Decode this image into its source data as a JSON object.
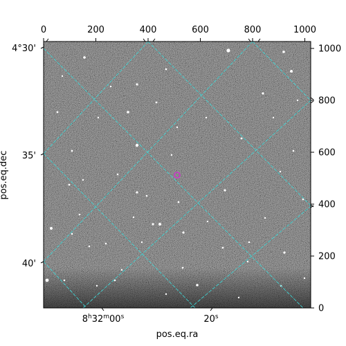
{
  "figure": {
    "xlabel": "pos.eq.ra",
    "ylabel": "pos.eq.dec",
    "top_pixel_ticks": [
      "0",
      "200",
      "400",
      "600",
      "800",
      "1000"
    ],
    "right_pixel_ticks": [
      "0",
      "200",
      "400",
      "600",
      "800",
      "1000"
    ],
    "ra_ticks": [
      {
        "main": "8",
        "h": "h",
        "m_val": "32",
        "m": "m",
        "s_val": "00",
        "s": "s"
      },
      {
        "main": "",
        "h": "",
        "m_val": "",
        "m": "",
        "s_val": "20",
        "s": "s"
      }
    ],
    "dec_ticks": [
      "4°30'",
      "35'",
      "40'"
    ],
    "grid_color": "#3fd3d3",
    "marker_color": "#cc33cc",
    "image": "grayscale star field"
  }
}
